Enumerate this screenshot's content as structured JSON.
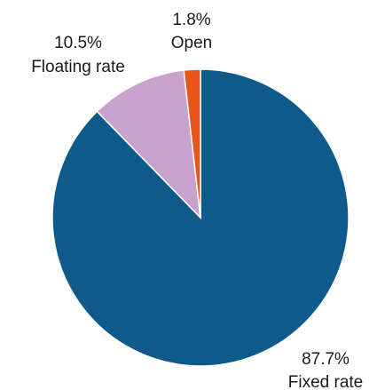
{
  "chart_data": {
    "type": "pie",
    "categories": [
      "Fixed rate",
      "Floating rate",
      "Open"
    ],
    "values": [
      87.7,
      10.5,
      1.8
    ],
    "value_labels": [
      "87.7%",
      "10.5%",
      "1.8%"
    ],
    "colors": [
      "#0e5a8a",
      "#c8a2cc",
      "#e8561b"
    ],
    "title": "",
    "legend": "none"
  }
}
